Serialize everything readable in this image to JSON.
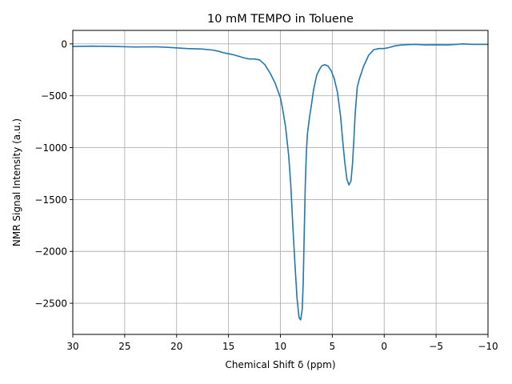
{
  "chart_data": {
    "type": "line",
    "title": "10 mM TEMPO in Toluene",
    "xlabel": "Chemical Shift δ (ppm)",
    "ylabel": "NMR Signal Intensity (a.u.)",
    "xlim": [
      30,
      -10
    ],
    "ylim": [
      -2800,
      130
    ],
    "x_inverted": true,
    "grid": true,
    "xticks": [
      30,
      25,
      20,
      15,
      10,
      5,
      0,
      -5,
      -10
    ],
    "xtick_labels": [
      "30",
      "25",
      "20",
      "15",
      "10",
      "5",
      "0",
      "−5",
      "−10"
    ],
    "yticks": [
      0,
      -500,
      -1000,
      -1500,
      -2000,
      -2500
    ],
    "ytick_labels": [
      "0",
      "−500",
      "−1000",
      "−1500",
      "−2000",
      "−2500"
    ],
    "series": [
      {
        "color": "#1f77b4",
        "x": [
          30,
          28,
          26,
          24,
          22,
          20.5,
          19,
          17.5,
          16.5,
          16,
          15.5,
          15,
          14.5,
          14,
          13.5,
          13,
          12.5,
          12,
          11.5,
          11,
          10.5,
          10,
          9.8,
          9.5,
          9.2,
          9,
          8.8,
          8.6,
          8.4,
          8.2,
          8.05,
          7.9,
          7.8,
          7.7,
          7.6,
          7.5,
          7.4,
          7.2,
          7,
          6.8,
          6.5,
          6.2,
          6,
          5.7,
          5.4,
          5.1,
          4.8,
          4.5,
          4.2,
          4,
          3.8,
          3.6,
          3.4,
          3.2,
          3.05,
          2.9,
          2.8,
          2.6,
          2.4,
          2.2,
          2,
          1.5,
          1,
          0.5,
          0,
          -0.5,
          -1,
          -1.5,
          -2,
          -3,
          -4,
          -5,
          -6,
          -7,
          -7.5,
          -8.5,
          -10
        ],
        "y": [
          -25,
          -22,
          -25,
          -30,
          -28,
          -35,
          -45,
          -50,
          -60,
          -70,
          -85,
          -95,
          -105,
          -120,
          -135,
          -145,
          -145,
          -155,
          -200,
          -280,
          -380,
          -520,
          -620,
          -800,
          -1080,
          -1360,
          -1760,
          -2120,
          -2450,
          -2640,
          -2660,
          -2560,
          -2300,
          -1800,
          -1350,
          -1050,
          -870,
          -710,
          -580,
          -440,
          -300,
          -240,
          -210,
          -200,
          -215,
          -260,
          -340,
          -470,
          -700,
          -930,
          -1140,
          -1300,
          -1360,
          -1320,
          -1150,
          -880,
          -680,
          -420,
          -340,
          -280,
          -220,
          -110,
          -55,
          -45,
          -45,
          -35,
          -20,
          -12,
          -8,
          -5,
          -10,
          -8,
          -10,
          -5,
          0,
          -5,
          -5
        ]
      }
    ]
  }
}
